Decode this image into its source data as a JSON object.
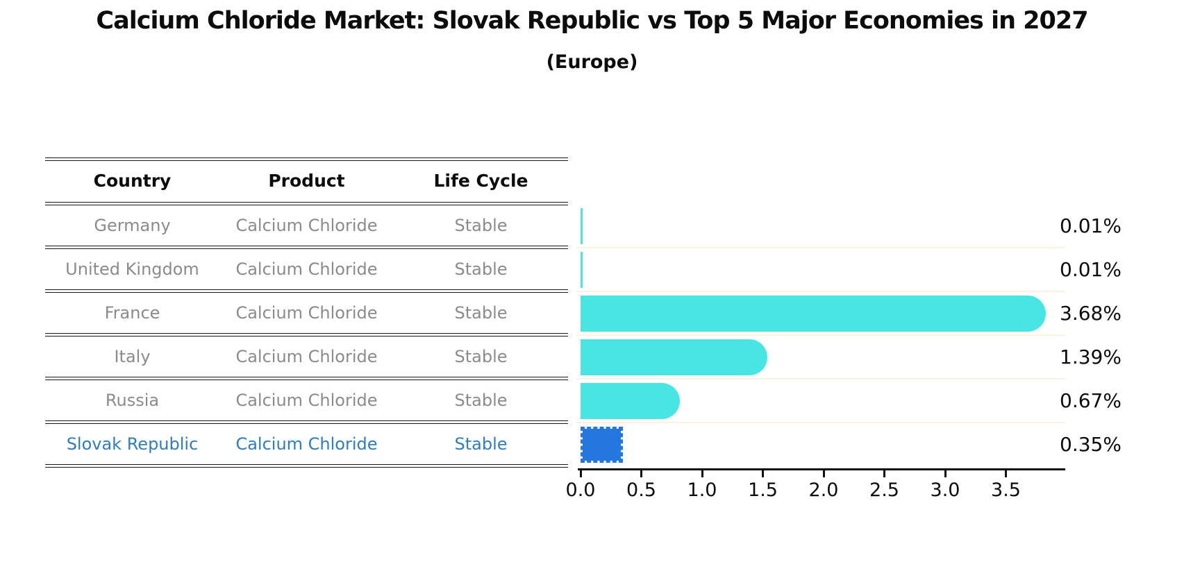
{
  "title": "Calcium Chloride Market: Slovak Republic vs Top 5 Major Economies in 2027",
  "subtitle": "(Europe)",
  "table": {
    "columns": [
      "Country",
      "Product",
      "Life Cycle"
    ],
    "rows": [
      {
        "country": "Germany",
        "product": "Calcium Chloride",
        "life_cycle": "Stable",
        "highlight": false
      },
      {
        "country": "United Kingdom",
        "product": "Calcium Chloride",
        "life_cycle": "Stable",
        "highlight": false
      },
      {
        "country": "France",
        "product": "Calcium Chloride",
        "life_cycle": "Stable",
        "highlight": false
      },
      {
        "country": "Italy",
        "product": "Calcium Chloride",
        "life_cycle": "Stable",
        "highlight": false
      },
      {
        "country": "Russia",
        "product": "Calcium Chloride",
        "life_cycle": "Stable",
        "highlight": false
      },
      {
        "country": "Slovak Republic",
        "product": "Calcium Chloride",
        "life_cycle": "Stable",
        "highlight": true
      }
    ]
  },
  "chart_data": {
    "type": "bar",
    "orientation": "horizontal",
    "title": "Calcium Chloride Market: Slovak Republic vs Top 5 Major Economies in 2027",
    "subtitle": "(Europe)",
    "categories": [
      "Germany",
      "United Kingdom",
      "France",
      "Italy",
      "Russia",
      "Slovak Republic"
    ],
    "values": [
      0.01,
      0.01,
      3.68,
      1.39,
      0.67,
      0.35
    ],
    "value_labels": [
      "0.01%",
      "0.01%",
      "3.68%",
      "1.39%",
      "0.67%",
      "0.35%"
    ],
    "highlight_index": 5,
    "xlabel": "",
    "ylabel": "",
    "x_ticks": [
      "0.0",
      "0.5",
      "1.0",
      "1.5",
      "2.0",
      "2.5",
      "3.0",
      "3.5"
    ],
    "xlim": [
      0,
      3.97
    ],
    "grid": false,
    "legend": "none"
  },
  "colors": {
    "bar_cyan": "#48e5e3",
    "bar_highlight_blue": "#2377de",
    "highlight_text_blue": "#2e7ebe",
    "row_text_gray": "#8b8b8b",
    "line_black": "#161616",
    "guide_cream": "#faf1e2"
  }
}
